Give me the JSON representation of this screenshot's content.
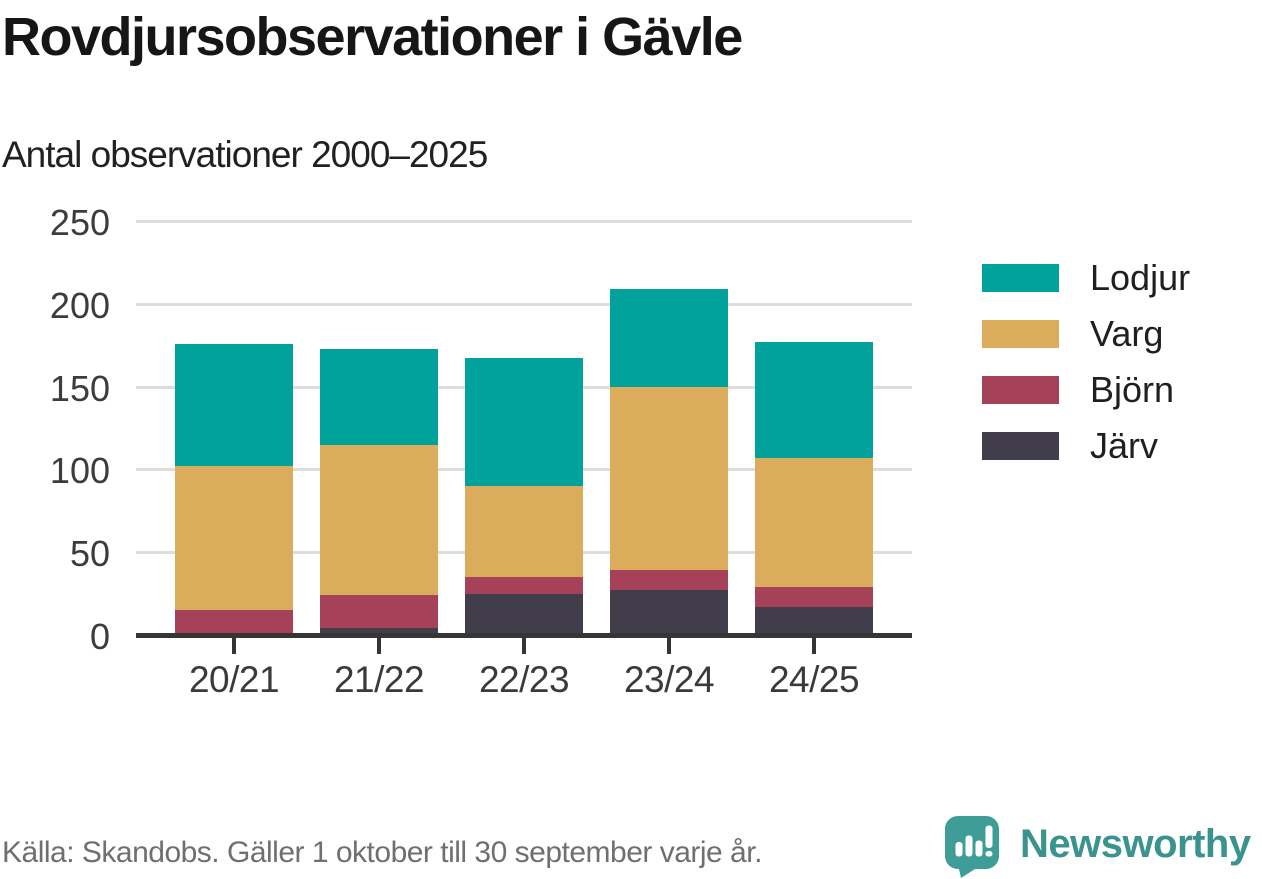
{
  "header": {
    "title": "Rovdjursobservationer i Gävle"
  },
  "chart": {
    "subtitle": "Antal observationer 2000–2025"
  },
  "chart_data": {
    "type": "bar",
    "stacked": true,
    "title": "Rovdjursobservationer i Gävle",
    "subtitle": "Antal observationer 2000–2025",
    "categories": [
      "20/21",
      "21/22",
      "22/23",
      "23/24",
      "24/25"
    ],
    "series": [
      {
        "name": "Lodjur",
        "color": "#00a29b",
        "values": [
          74,
          58,
          77,
          59,
          70
        ]
      },
      {
        "name": "Varg",
        "color": "#dbac5c",
        "values": [
          87,
          91,
          55,
          111,
          78
        ]
      },
      {
        "name": "Björn",
        "color": "#a54158",
        "values": [
          15,
          20,
          10,
          12,
          12
        ]
      },
      {
        "name": "Järv",
        "color": "#413d4b",
        "values": [
          0,
          4,
          25,
          27,
          17
        ]
      }
    ],
    "stack_note": "series listed top-of-stack first; bars stack Järv at bottom up to Lodjur on top",
    "yticks": [
      0,
      50,
      100,
      150,
      200,
      250
    ],
    "ylim": [
      0,
      250
    ],
    "xlabel": "",
    "ylabel": "",
    "grid": "horizontal",
    "legend_position": "right",
    "colors": {
      "axis": "#353535",
      "gridline": "#dddddd",
      "tick_label": "#3c3c3c"
    }
  },
  "footer": {
    "source": "Källa: Skandobs. Gäller 1 oktober till 30 september varje år.",
    "brand": "Newsworthy",
    "brand_color": "#3a938d",
    "logo_color": "#3f9d97"
  }
}
